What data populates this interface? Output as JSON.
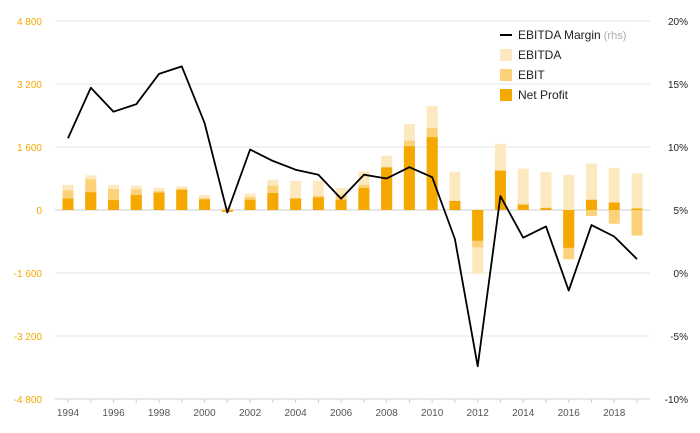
{
  "chart_data": {
    "type": "bar",
    "x": [
      1994,
      1995,
      1996,
      1997,
      1998,
      1999,
      2000,
      2001,
      2002,
      2003,
      2004,
      2005,
      2006,
      2007,
      2008,
      2009,
      2010,
      2011,
      2012,
      2013,
      2014,
      2015,
      2016,
      2017,
      2018,
      2019
    ],
    "x_ticks": [
      "1994",
      "1996",
      "1998",
      "2000",
      "2002",
      "2004",
      "2006",
      "2008",
      "2010",
      "2012",
      "2014",
      "2016",
      "2018"
    ],
    "y_left_ticks": [
      "4 800",
      "3 200",
      "1 600",
      "0",
      "-1 600",
      "-3 200",
      "-4 800"
    ],
    "y_right_ticks": [
      "20%",
      "15%",
      "10%",
      "5%",
      "0%",
      "-5%",
      "-10%"
    ],
    "ylim_left": [
      -4800,
      4800
    ],
    "ylim_right": [
      -10,
      20
    ],
    "series": [
      {
        "name": "EBITDA",
        "kind": "bar",
        "color": "#fde9c0",
        "values": [
          640,
          880,
          640,
          620,
          560,
          600,
          380,
          60,
          420,
          770,
          740,
          740,
          560,
          980,
          1380,
          2180,
          2640,
          970,
          -1620,
          1680,
          1050,
          960,
          890,
          1180,
          1070,
          930
        ]
      },
      {
        "name": "EBIT",
        "kind": "bar",
        "color": "#fbd27a",
        "values": [
          500,
          780,
          530,
          520,
          480,
          540,
          300,
          -30,
          330,
          620,
          300,
          360,
          380,
          640,
          1090,
          1760,
          2080,
          230,
          -950,
          1000,
          160,
          60,
          -1250,
          -150,
          -350,
          -650
        ]
      },
      {
        "name": "Net Profit",
        "kind": "bar",
        "color": "#f5a800",
        "values": [
          290,
          450,
          250,
          380,
          440,
          510,
          270,
          -50,
          260,
          430,
          290,
          320,
          260,
          560,
          1080,
          1620,
          1850,
          230,
          -780,
          1000,
          130,
          50,
          -960,
          260,
          190,
          40
        ]
      },
      {
        "name": "EBITDA Margin",
        "name_suffix": "(rhs)",
        "kind": "line",
        "color": "#000000",
        "axis": "right",
        "values": [
          10.7,
          14.7,
          12.8,
          13.4,
          15.8,
          16.4,
          11.9,
          4.8,
          9.8,
          8.9,
          8.2,
          7.8,
          5.9,
          7.8,
          7.5,
          8.4,
          7.6,
          2.7,
          -7.4,
          6.1,
          2.8,
          3.7,
          -1.4,
          3.8,
          2.9,
          1.1
        ]
      }
    ],
    "legend_position": "top-right",
    "grid": "horizontal",
    "colors": {
      "tick_left": "#f5a800",
      "grid": "#e6e6e6",
      "axis": "#d0d0d0"
    }
  }
}
